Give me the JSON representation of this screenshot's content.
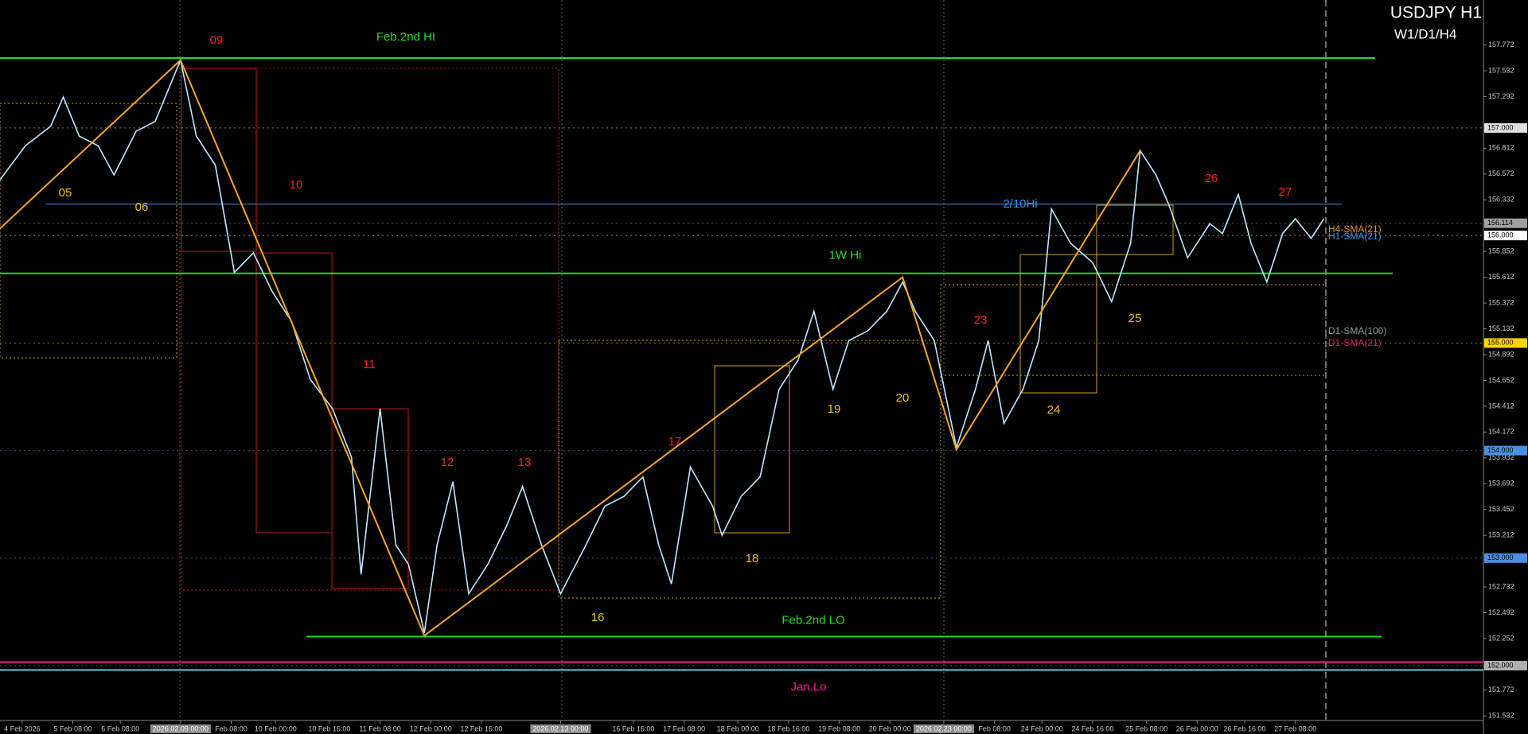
{
  "chart_data": {
    "type": "line",
    "title": "USDJPY H1",
    "subtitle": "W1/D1/H4",
    "xlim": [
      0,
      468
    ],
    "ylim": [
      151.49,
      158.19
    ],
    "xticks": [
      {
        "value": 7,
        "label": "4 Feb 2026"
      },
      {
        "value": 23,
        "label": "5 Feb 08:00"
      },
      {
        "value": 38,
        "label": "6 Feb 08:00"
      },
      {
        "value": 57,
        "label": "2026.02.09 00:00"
      },
      {
        "value": 73,
        "label": "Feb 08:00"
      },
      {
        "value": 87,
        "label": "10 Feb 00:00"
      },
      {
        "value": 104,
        "label": "10 Feb 16:00"
      },
      {
        "value": 120,
        "label": "11 Feb 08:00"
      },
      {
        "value": 136,
        "label": "12 Feb 00:00"
      },
      {
        "value": 152,
        "label": "12 Feb 16:00"
      },
      {
        "value": 177,
        "label": "2026.02.13 00:00"
      },
      {
        "value": 200,
        "label": "16 Feb 16:00"
      },
      {
        "value": 216,
        "label": "17 Feb 08:00"
      },
      {
        "value": 233,
        "label": "18 Feb 00:00"
      },
      {
        "value": 249,
        "label": "18 Feb 16:00"
      },
      {
        "value": 265,
        "label": "19 Feb 08:00"
      },
      {
        "value": 281,
        "label": "20 Feb 00:00"
      },
      {
        "value": 298,
        "label": "2026.02.23 00:00"
      },
      {
        "value": 314,
        "label": "Feb 08:00"
      },
      {
        "value": 329,
        "label": "24 Feb 00:00"
      },
      {
        "value": 345,
        "label": "24 Feb 16:00"
      },
      {
        "value": 362,
        "label": "25 Feb 08:00"
      },
      {
        "value": 378,
        "label": "26 Feb 00:00"
      },
      {
        "value": 393,
        "label": "26 Feb 16:00"
      },
      {
        "value": 409,
        "label": "27 Feb 08:00"
      }
    ],
    "yticks": [
      157.772,
      157.532,
      157.292,
      156.812,
      156.572,
      156.332,
      155.852,
      155.612,
      155.372,
      155.132,
      154.892,
      154.652,
      154.412,
      154.172,
      153.932,
      153.692,
      153.452,
      153.212,
      152.732,
      152.492,
      152.252,
      151.772,
      151.532
    ],
    "price_boxes": [
      {
        "value": 157,
        "label": "157.000",
        "color": "#e0e0e0"
      },
      {
        "value": 156.114,
        "label": "156.114",
        "color": "#a0a0a0"
      },
      {
        "value": 156,
        "label": "156.000",
        "color": "#ffffff"
      },
      {
        "value": 155,
        "label": "155.000",
        "color": "#ffd700"
      },
      {
        "value": 154,
        "label": "154.000",
        "color": "#4a90e2"
      },
      {
        "value": 153,
        "label": "153.000",
        "color": "#4a90e2"
      },
      {
        "value": 152,
        "label": "152.000",
        "color": "#b0b0b0"
      }
    ],
    "series": [
      {
        "name": "price",
        "color": "#bfe8ff",
        "x": [
          0,
          8,
          16,
          20,
          25,
          31,
          36,
          43,
          49,
          57,
          62,
          68,
          74,
          80,
          86,
          92,
          98,
          105,
          111,
          114,
          120,
          125,
          129,
          134,
          138,
          143,
          148,
          154,
          160,
          165,
          171,
          177,
          185,
          191,
          197,
          203,
          208,
          212,
          218,
          225,
          228,
          234,
          240,
          246,
          252,
          257,
          263,
          268,
          274,
          280,
          285,
          289,
          295,
          302,
          308,
          312,
          317,
          323,
          328,
          332,
          338,
          345,
          351,
          357,
          360,
          365,
          369,
          375,
          382,
          386,
          391,
          395,
          400,
          405,
          409,
          414,
          418
        ],
        "values": [
          156.518,
          156.834,
          157.016,
          157.287,
          156.925,
          156.834,
          156.563,
          156.97,
          157.061,
          157.631,
          156.925,
          156.653,
          155.657,
          155.838,
          155.476,
          155.204,
          154.661,
          154.389,
          153.936,
          152.849,
          154.389,
          153.121,
          152.94,
          152.306,
          153.121,
          153.71,
          152.668,
          152.94,
          153.302,
          153.665,
          153.121,
          152.668,
          153.121,
          153.483,
          153.574,
          153.755,
          153.121,
          152.759,
          153.846,
          153.483,
          153.212,
          153.574,
          153.755,
          154.57,
          154.842,
          155.295,
          154.57,
          155.023,
          155.114,
          155.295,
          155.567,
          155.295,
          155.023,
          154.027,
          154.57,
          155.023,
          154.253,
          154.57,
          155.023,
          156.246,
          155.929,
          155.748,
          155.385,
          155.929,
          156.789,
          156.563,
          156.291,
          155.793,
          156.11,
          156.019,
          156.382,
          155.929,
          155.567,
          156.019,
          156.155,
          155.974,
          156.155
        ]
      },
      {
        "name": "zigzag",
        "color": "#f5a623",
        "x": [
          0,
          57,
          134,
          285,
          302,
          360
        ],
        "values": [
          156.065,
          157.631,
          152.279,
          155.612,
          154.009,
          156.789
        ]
      }
    ],
    "levels": [
      {
        "label": "Feb.2nd HI",
        "value": 157.65,
        "color": "#22dd22"
      },
      {
        "label": "2/10Hi",
        "value": 156.291,
        "color": "#3a8ee6"
      },
      {
        "label": "1W Hi",
        "value": 155.648,
        "color": "#22dd22"
      },
      {
        "label": "Feb.2nd LO",
        "value": 152.27,
        "color": "#22dd22"
      },
      {
        "label": "Jan.Lo",
        "value": 152.034,
        "color": "#ff1493"
      }
    ],
    "annotations": [
      {
        "text": "05",
        "color": "#f0c020"
      },
      {
        "text": "06",
        "color": "#f0c020"
      },
      {
        "text": "09",
        "color": "#ff2020"
      },
      {
        "text": "10",
        "color": "#ff2020"
      },
      {
        "text": "11",
        "color": "#ff2020"
      },
      {
        "text": "12",
        "color": "#ff2020"
      },
      {
        "text": "13",
        "color": "#ff2020"
      },
      {
        "text": "16",
        "color": "#f0c020"
      },
      {
        "text": "17",
        "color": "#ff2020"
      },
      {
        "text": "18",
        "color": "#f0c020"
      },
      {
        "text": "19",
        "color": "#f0c020"
      },
      {
        "text": "20",
        "color": "#f0c020"
      },
      {
        "text": "23",
        "color": "#ff2020"
      },
      {
        "text": "24",
        "color": "#f0c020"
      },
      {
        "text": "25",
        "color": "#f0c020"
      },
      {
        "text": "26",
        "color": "#ff2020"
      },
      {
        "text": "27",
        "color": "#ff2020"
      }
    ],
    "sma_labels": [
      {
        "text": "H4-SMA(21)",
        "color": "#e8902a"
      },
      {
        "text": "H1-SMA(21)",
        "color": "#3a8ee6"
      },
      {
        "text": "D1-SMA(100)",
        "color": "#7fa0a0"
      },
      {
        "text": "D1-SMA(21)",
        "color": "#d0206a"
      }
    ]
  }
}
